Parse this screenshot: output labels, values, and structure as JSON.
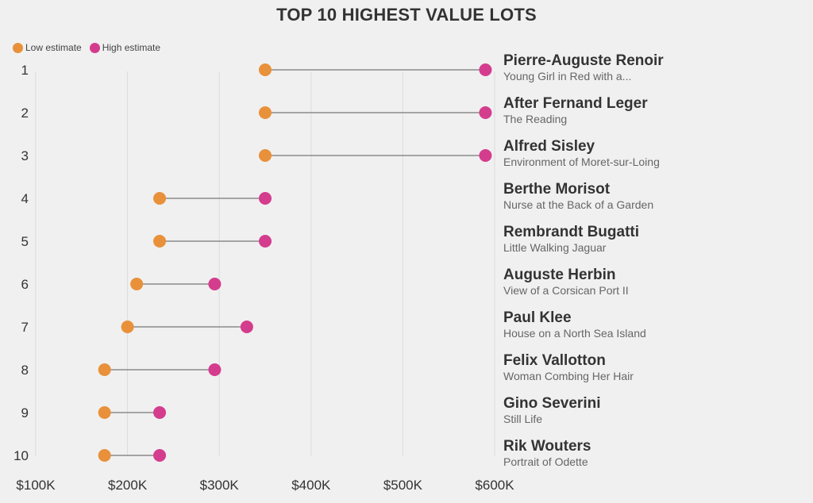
{
  "chart_data": {
    "type": "dumbbell",
    "title": "TOP 10 HIGHEST VALUE LOTS",
    "legend": [
      {
        "name": "Low estimate",
        "color": "#e8913a"
      },
      {
        "name": "High estimate",
        "color": "#d43d8d"
      }
    ],
    "legend_placement": "top-left",
    "xlim": [
      100000,
      600000
    ],
    "xticks": [
      100000,
      200000,
      300000,
      400000,
      500000,
      600000
    ],
    "xtick_labels": [
      "$100K",
      "$200K",
      "$300K",
      "$400K",
      "$500K",
      "$600K"
    ],
    "grid": true,
    "connector_color": "#8a8a8a",
    "rows": [
      {
        "rank": "1",
        "artist": "Pierre-Auguste Renoir",
        "work": "Young Girl in Red with a...",
        "low": 350000,
        "high": 590000
      },
      {
        "rank": "2",
        "artist": "After Fernand Leger",
        "work": "The Reading",
        "low": 350000,
        "high": 590000
      },
      {
        "rank": "3",
        "artist": "Alfred Sisley",
        "work": "Environment of Moret-sur-Loing",
        "low": 350000,
        "high": 590000
      },
      {
        "rank": "4",
        "artist": "Berthe Morisot",
        "work": "Nurse at the Back of a Garden",
        "low": 235000,
        "high": 350000
      },
      {
        "rank": "5",
        "artist": "Rembrandt Bugatti",
        "work": "Little Walking Jaguar",
        "low": 235000,
        "high": 350000
      },
      {
        "rank": "6",
        "artist": "Auguste Herbin",
        "work": "View of a Corsican Port II",
        "low": 210000,
        "high": 295000
      },
      {
        "rank": "7",
        "artist": "Paul Klee",
        "work": "House on a North Sea Island",
        "low": 200000,
        "high": 330000
      },
      {
        "rank": "8",
        "artist": "Felix Vallotton",
        "work": "Woman Combing Her Hair",
        "low": 175000,
        "high": 295000
      },
      {
        "rank": "9",
        "artist": "Gino Severini",
        "work": "Still Life",
        "low": 175000,
        "high": 235000
      },
      {
        "rank": "10",
        "artist": "Rik Wouters",
        "work": "Portrait of Odette",
        "low": 175000,
        "high": 235000
      }
    ]
  }
}
